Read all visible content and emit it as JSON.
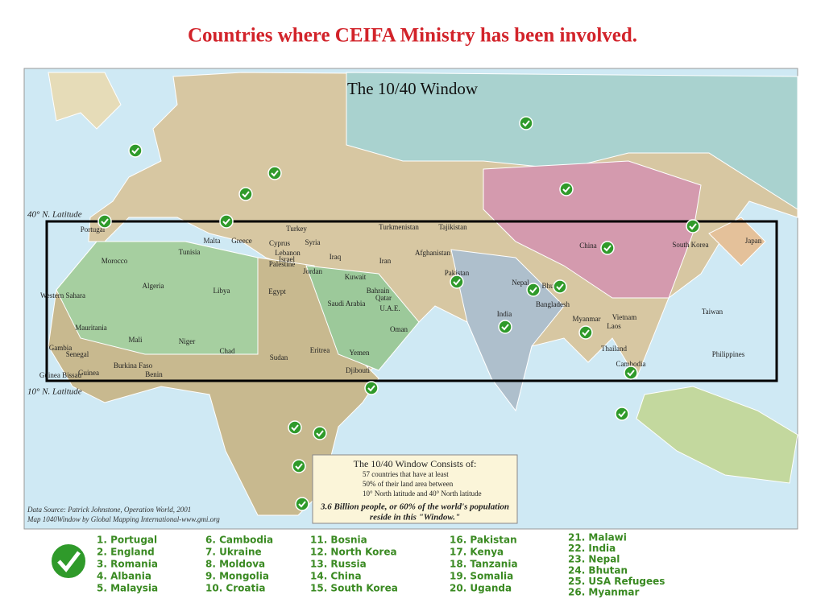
{
  "header": {
    "title": "Countries where CEIFA Ministry has been involved."
  },
  "map": {
    "title": "The 10/40 Window",
    "lat_40": "40° N. Latitude",
    "lat_10": "10° N. Latitude",
    "country_labels": [
      "Portugal",
      "Malta",
      "Greece",
      "Turkey",
      "Turkmenistan",
      "Tajikistan",
      "South Korea",
      "Japan",
      "China",
      "Morocco",
      "Tunisia",
      "Cyprus",
      "Syria",
      "Lebanon",
      "Israel",
      "Palestine",
      "Iraq",
      "Iran",
      "Afghanistan",
      "Pakistan",
      "Jordan",
      "Kuwait",
      "Nepal",
      "Bhu",
      "Bahrain",
      "Qatar",
      "Western Sahara",
      "Algeria",
      "Libya",
      "Egypt",
      "Saudi Arabia",
      "U.A.E.",
      "India",
      "Bangladesh",
      "Taiwan",
      "Myanmar",
      "Vietnam",
      "Laos",
      "Oman",
      "Mauritania",
      "Mali",
      "Niger",
      "Chad",
      "Sudan",
      "Eritrea",
      "Yemen",
      "Thailand",
      "Philippines",
      "Cambodia",
      "Gambia",
      "Senegal",
      "Burkina Faso",
      "Guinea",
      "Guinea Bissau",
      "Benin",
      "Djibouti"
    ],
    "info_box": [
      "The 10/40 Window Consists of:",
      "57 countries that have at least",
      "50% of their land area between",
      "10° North latitude and 40° North latitude",
      "3.6 Billion people, or 60% of the world's population",
      "reside in this \"Window.\""
    ],
    "source": [
      "Data Source:  Patrick Johnstone, Operation World, 2001",
      "Map 1040Window by Global Mapping International-www.gmi.org"
    ]
  },
  "legend": {
    "columns": [
      [
        "1. Portugal",
        "2. England",
        "3. Romania",
        "4. Albania",
        "5. Malaysia"
      ],
      [
        "6. Cambodia",
        "7. Ukraine",
        "8. Moldova",
        "9. Mongolia",
        "10. Croatia"
      ],
      [
        "11. Bosnia",
        "12. North Korea",
        "13. Russia",
        "14. China",
        "15. South Korea"
      ],
      [
        "16. Pakistan",
        "17. Kenya",
        "18. Tanzania",
        "19. Somalia",
        "20. Uganda"
      ],
      [
        "21. Malawi",
        "22. India",
        "23. Nepal",
        "24. Bhutan",
        "25. USA Refugees",
        "26. Myanmar"
      ]
    ]
  }
}
